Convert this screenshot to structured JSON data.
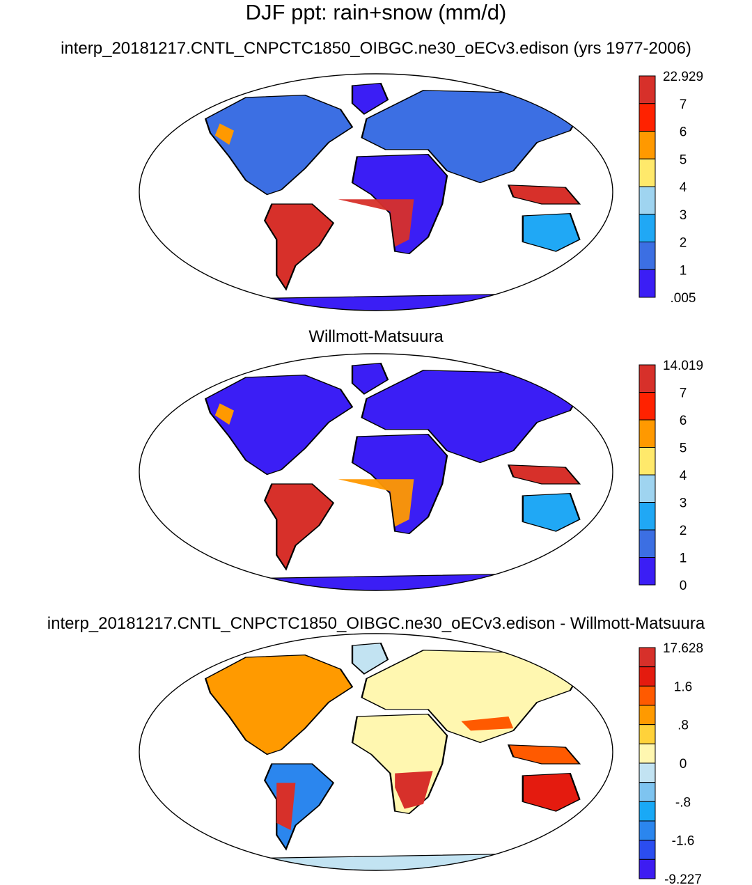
{
  "title": "DJF ppt: rain+snow (mm/d)",
  "panels": [
    {
      "title": "interp_20181217.CNTL_CNPCTC1850_OIBGC.ne30_oECv3.edison (yrs 1977-2006)",
      "colorbar": {
        "labels": [
          "22.929",
          "7",
          "6",
          "5",
          "4",
          "3",
          "2",
          "1",
          ".005"
        ],
        "colors": [
          "#d7302a",
          "#ff2200",
          "#ff9900",
          "#ffe96b",
          "#9fd4f0",
          "#20a8f5",
          "#3c6fe3",
          "#3b1ef5"
        ]
      }
    },
    {
      "title": "Willmott-Matsuura",
      "colorbar": {
        "labels": [
          "14.019",
          "7",
          "6",
          "5",
          "4",
          "3",
          "2",
          "1",
          "0"
        ],
        "colors": [
          "#d7302a",
          "#ff2200",
          "#ff9900",
          "#ffe96b",
          "#9fd4f0",
          "#20a8f5",
          "#3c6fe3",
          "#3b1ef5"
        ]
      }
    },
    {
      "title": "interp_20181217.CNTL_CNPCTC1850_OIBGC.ne30_oECv3.edison - Willmott-Matsuura",
      "colorbar": {
        "labels": [
          "17.628",
          "1.6",
          ".8",
          "0",
          "-.8",
          "-1.6",
          "-9.227"
        ],
        "colors": [
          "#d7302a",
          "#e41b0f",
          "#ff5a00",
          "#ff9a00",
          "#ffd23a",
          "#fff7b0",
          "#c2e3f2",
          "#7ec4f0",
          "#19a9f6",
          "#2b86ee",
          "#2b4df0",
          "#3d1cf2"
        ]
      }
    }
  ]
}
